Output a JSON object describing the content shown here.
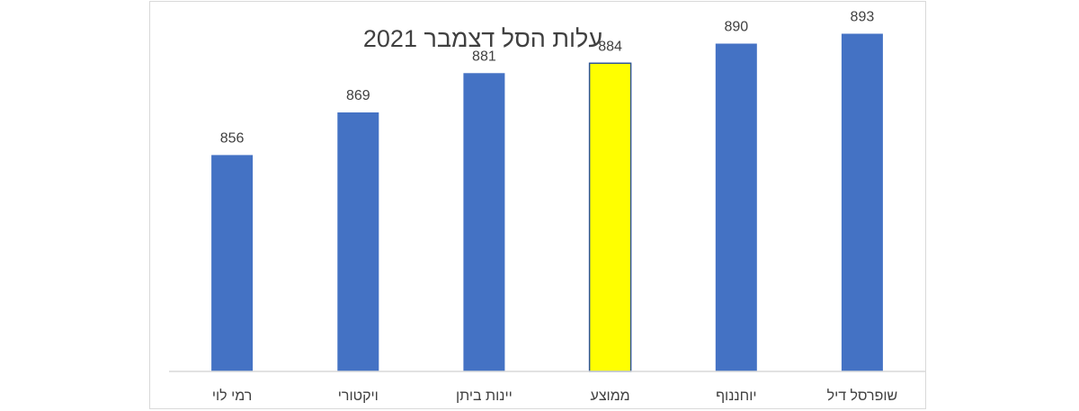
{
  "chart_data": {
    "type": "bar",
    "title": "עלות הסל  דצמבר 2021",
    "categories": [
      "רמי לוי",
      "ויקטורי",
      "יינות ביתן",
      "ממוצע",
      "יוחננוף",
      "שופרסל דיל"
    ],
    "values": [
      856,
      869,
      881,
      884,
      890,
      893
    ],
    "data_labels": [
      "856",
      "869",
      "881",
      "884",
      "890",
      "893"
    ],
    "bar_colors": [
      "#4472C4",
      "#4472C4",
      "#4472C4",
      "#FFFF00",
      "#4472C4",
      "#4472C4"
    ],
    "highlight_border": "#2F5597",
    "ylim": [
      790,
      900
    ],
    "grid": false,
    "legend": "none"
  }
}
